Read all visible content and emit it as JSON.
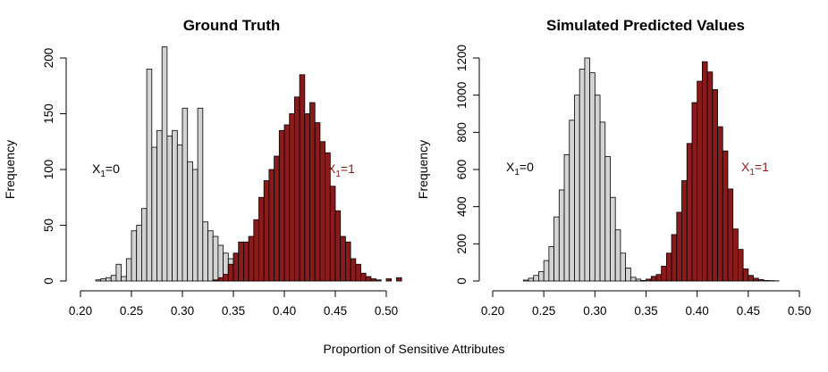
{
  "shared_xlabel": "Proportion of Sensitive Attributes",
  "colors": {
    "group0": "#d3d3d3",
    "group1": "#8b1a1a",
    "outline": "#000000"
  },
  "chart_data": [
    {
      "type": "histogram",
      "title": "Ground Truth",
      "ylabel": "Frequency",
      "xlim": [
        0.2,
        0.5
      ],
      "ylim": [
        0,
        200
      ],
      "x_ticks": [
        "0.20",
        "0.25",
        "0.30",
        "0.35",
        "0.40",
        "0.45",
        "0.50"
      ],
      "y_ticks": [
        "0",
        "50",
        "100",
        "150",
        "200"
      ],
      "bin_width": 0.005,
      "annotations": [
        {
          "text": "X",
          "sub": "1",
          "rest": "=0",
          "color": "#000000"
        },
        {
          "text": "X",
          "sub": "1",
          "rest": "=1",
          "color": "#8b1a1a"
        }
      ],
      "series": [
        {
          "name": "X1=0",
          "color": "#d3d3d3",
          "bin_start": 0.215,
          "values": [
            1,
            2,
            3,
            5,
            15,
            4,
            20,
            45,
            50,
            65,
            190,
            120,
            135,
            210,
            130,
            135,
            122,
            155,
            107,
            100,
            155,
            53,
            45,
            40,
            32,
            25,
            20,
            15,
            6,
            5,
            5,
            3,
            1
          ]
        },
        {
          "name": "X1=1",
          "color": "#8b1a1a",
          "bin_start": 0.33,
          "values": [
            1,
            3,
            6,
            15,
            25,
            35,
            35,
            40,
            55,
            75,
            90,
            100,
            112,
            135,
            140,
            150,
            165,
            185,
            150,
            160,
            142,
            125,
            115,
            85,
            63,
            40,
            35,
            20,
            15,
            7,
            4,
            2,
            1,
            0,
            2,
            0,
            3
          ]
        }
      ]
    },
    {
      "type": "histogram",
      "title": "Simulated Predicted Values",
      "ylabel": "Frequency",
      "xlim": [
        0.2,
        0.5
      ],
      "ylim": [
        0,
        1200
      ],
      "x_ticks": [
        "0.20",
        "0.25",
        "0.30",
        "0.35",
        "0.40",
        "0.45",
        "0.50"
      ],
      "y_ticks": [
        "0",
        "200",
        "400",
        "600",
        "800",
        "1000",
        "1200"
      ],
      "bin_width": 0.005,
      "annotations": [
        {
          "text": "X",
          "sub": "1",
          "rest": "=0",
          "color": "#000000"
        },
        {
          "text": "X",
          "sub": "1",
          "rest": "=1",
          "color": "#8b1a1a"
        }
      ],
      "series": [
        {
          "name": "X1=0",
          "color": "#d3d3d3",
          "bin_start": 0.23,
          "values": [
            5,
            15,
            30,
            50,
            110,
            185,
            345,
            490,
            680,
            865,
            1000,
            1140,
            1200,
            1120,
            1000,
            855,
            670,
            450,
            275,
            150,
            70,
            20,
            10,
            2
          ]
        },
        {
          "name": "X1=1",
          "color": "#8b1a1a",
          "bin_start": 0.345,
          "values": [
            3,
            10,
            25,
            35,
            80,
            150,
            250,
            370,
            540,
            740,
            960,
            1075,
            1180,
            1125,
            1030,
            830,
            700,
            495,
            280,
            170,
            65,
            30,
            15,
            8,
            3,
            2,
            1
          ]
        }
      ]
    }
  ]
}
